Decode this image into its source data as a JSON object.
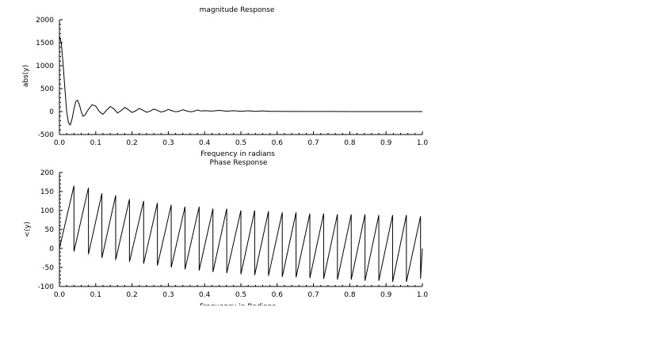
{
  "chart_data": [
    {
      "type": "line",
      "title": "magnitude Response",
      "xlabel": "Frequency in radians",
      "ylabel": "abs(y)",
      "xlim": [
        0,
        1
      ],
      "ylim": [
        -500,
        2000
      ],
      "xticks": [
        "0.0",
        "0.1",
        "0.2",
        "0.3",
        "0.4",
        "0.5",
        "0.6",
        "0.7",
        "0.8",
        "0.9",
        "1.0"
      ],
      "yticks": [
        "-500",
        "0",
        "500",
        "1000",
        "1500",
        "2000"
      ],
      "grid": false,
      "series": [
        {
          "x": [
            0,
            0.005,
            0.01,
            0.015,
            0.02,
            0.025,
            0.03,
            0.035,
            0.04,
            0.045,
            0.05,
            0.055,
            0.06,
            0.065,
            0.07,
            0.08,
            0.09,
            0.1,
            0.11,
            0.12,
            0.13,
            0.14,
            0.15,
            0.16,
            0.17,
            0.18,
            0.19,
            0.2,
            0.21,
            0.22,
            0.23,
            0.24,
            0.25,
            0.26,
            0.27,
            0.28,
            0.29,
            0.3,
            0.31,
            0.32,
            0.33,
            0.34,
            0.35,
            0.36,
            0.37,
            0.38,
            0.39,
            0.4,
            0.42,
            0.44,
            0.46,
            0.48,
            0.5,
            0.52,
            0.54,
            0.56,
            0.58,
            0.6,
            0.65,
            0.7,
            0.75,
            0.8,
            0.85,
            0.9,
            0.95,
            1.0
          ],
          "y": [
            1650,
            1500,
            1050,
            500,
            0,
            -250,
            -290,
            -150,
            50,
            220,
            250,
            150,
            0,
            -100,
            -80,
            50,
            150,
            120,
            0,
            -60,
            30,
            110,
            60,
            -30,
            20,
            90,
            40,
            -20,
            15,
            70,
            30,
            -15,
            10,
            55,
            25,
            -10,
            10,
            45,
            20,
            -5,
            8,
            40,
            15,
            -5,
            5,
            35,
            12,
            20,
            10,
            25,
            8,
            20,
            6,
            18,
            5,
            15,
            4,
            5,
            3,
            2,
            2,
            1,
            1,
            1,
            1,
            0
          ]
        }
      ]
    },
    {
      "type": "line",
      "title": "Phase Response",
      "xlabel": "Frequency in Radians",
      "ylabel": "<(y)",
      "xlim": [
        0,
        1
      ],
      "ylim": [
        -100,
        200
      ],
      "xticks": [
        "0.0",
        "0.1",
        "0.2",
        "0.3",
        "0.4",
        "0.5",
        "0.6",
        "0.7",
        "0.8",
        "0.9",
        "1.0"
      ],
      "yticks": [
        "-100",
        "-50",
        "0",
        "50",
        "100",
        "150",
        "200"
      ],
      "grid": false,
      "series": [
        {
          "x": [
            0,
            0.04,
            0.04,
            0.08,
            0.08,
            0.117,
            0.117,
            0.155,
            0.155,
            0.193,
            0.193,
            0.232,
            0.232,
            0.27,
            0.27,
            0.308,
            0.308,
            0.346,
            0.346,
            0.385,
            0.385,
            0.423,
            0.423,
            0.461,
            0.461,
            0.5,
            0.5,
            0.538,
            0.538,
            0.576,
            0.576,
            0.614,
            0.614,
            0.652,
            0.652,
            0.69,
            0.69,
            0.728,
            0.728,
            0.766,
            0.766,
            0.804,
            0.804,
            0.842,
            0.842,
            0.88,
            0.88,
            0.918,
            0.918,
            0.956,
            0.956,
            0.995,
            0.995,
            1.0
          ],
          "y": [
            0,
            165,
            -8,
            160,
            -15,
            145,
            -25,
            140,
            -30,
            130,
            -35,
            125,
            -40,
            120,
            -45,
            115,
            -50,
            110,
            -55,
            110,
            -58,
            105,
            -62,
            105,
            -65,
            100,
            -68,
            100,
            -70,
            98,
            -72,
            95,
            -75,
            95,
            -76,
            92,
            -78,
            92,
            -80,
            90,
            -82,
            90,
            -82,
            90,
            -85,
            88,
            -85,
            88,
            -88,
            88,
            -88,
            85,
            -80,
            0
          ]
        }
      ]
    }
  ]
}
